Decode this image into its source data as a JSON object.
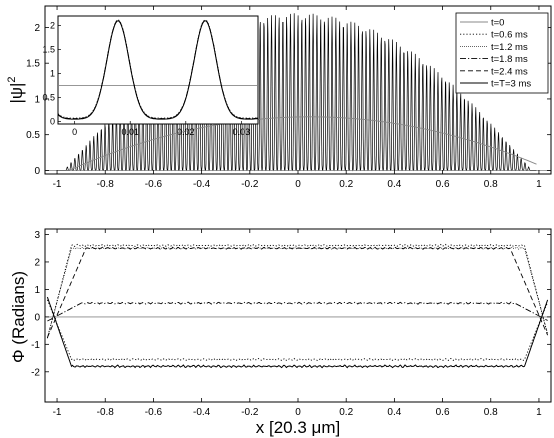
{
  "chart_data": [
    {
      "type": "line",
      "ylabel_base": "|ψ|",
      "ylabel_sup": "2",
      "xlim": [
        -1.05,
        1.05
      ],
      "ylim": [
        -0.05,
        2.3
      ],
      "x_ticks": [
        -1,
        -0.8,
        -0.6,
        -0.4,
        -0.2,
        0,
        0.2,
        0.4,
        0.6,
        0.8,
        1
      ],
      "x_tick_labels": [
        "-1",
        "-0.8",
        "-0.6",
        "-0.4",
        "-0.2",
        "0",
        "0.2",
        "0.4",
        "0.6",
        "0.8",
        "1"
      ],
      "y_ticks": [
        0,
        0.5,
        1,
        1.5,
        2
      ],
      "y_tick_labels": [
        "0",
        "0.5",
        "1",
        "1.5",
        "2"
      ],
      "legend_position": "top-right",
      "legend": [
        {
          "label": "t=0",
          "style": "solid-gray"
        },
        {
          "label": "t=0.6 ms",
          "style": "dotted"
        },
        {
          "label": "t=1.2 ms",
          "style": "fine-dotted"
        },
        {
          "label": "t=1.8 ms",
          "style": "dash-dot"
        },
        {
          "label": "t=2.4 ms",
          "style": "dashed"
        },
        {
          "label": "t=T=3 ms",
          "style": "solid"
        }
      ],
      "series_description": [
        {
          "name": "t=0",
          "shape": "smooth profile",
          "peak_x": 0.1,
          "peak_y": 0.75
        },
        {
          "name": "t=T=3 ms",
          "shape": "oscillating lattice fringes under envelope",
          "envelope_peak": 2.2,
          "fringe_period": 0.0157
        }
      ],
      "inset": {
        "xlim": [
          -0.003,
          0.033
        ],
        "ylim": [
          -0.05,
          2.2
        ],
        "x_ticks": [
          0,
          0.01,
          0.02,
          0.03
        ],
        "x_tick_labels": [
          "0",
          "0.01",
          "0.02",
          "0.03"
        ],
        "y_ticks": [
          0,
          0.5,
          1,
          1.5,
          2
        ],
        "y_tick_labels": [
          "0",
          "0.5",
          "1",
          "1.5",
          "2"
        ],
        "baseline_y": 0.75,
        "peak_positions": [
          0.0078,
          0.0235
        ],
        "peak_y": 2.1
      }
    },
    {
      "type": "line",
      "ylabel": "Φ  (Radians)",
      "xlabel": "x   [20.3 μm]",
      "xlim": [
        -1.05,
        1.05
      ],
      "ylim": [
        -3.1,
        3.2
      ],
      "x_ticks": [
        -1,
        -0.8,
        -0.6,
        -0.4,
        -0.2,
        0,
        0.2,
        0.4,
        0.6,
        0.8,
        1
      ],
      "x_tick_labels": [
        "-1",
        "-0.8",
        "-0.6",
        "-0.4",
        "-0.2",
        "0",
        "0.2",
        "0.4",
        "0.6",
        "0.8",
        "1"
      ],
      "y_ticks": [
        -2,
        -1,
        0,
        1,
        2,
        3
      ],
      "y_tick_labels": [
        "-2",
        "-1",
        "0",
        "1",
        "2",
        "3"
      ],
      "series": [
        {
          "name": "t=0",
          "style": "solid-gray",
          "plateau": 0
        },
        {
          "name": "t=0.6 ms",
          "style": "dotted",
          "plateau": 2.6
        },
        {
          "name": "t=0.6 ms (lower)",
          "style": "dotted",
          "plateau": -1.55
        },
        {
          "name": "t=1.2 ms",
          "style": "fine-dotted",
          "plateau": 2.5
        },
        {
          "name": "t=1.8 ms",
          "style": "dash-dot",
          "plateau": 0.5
        },
        {
          "name": "t=2.4 ms",
          "style": "dashed",
          "plateau": 2.5
        },
        {
          "name": "t=T=3 ms",
          "style": "solid",
          "plateau": -1.8
        }
      ]
    }
  ]
}
